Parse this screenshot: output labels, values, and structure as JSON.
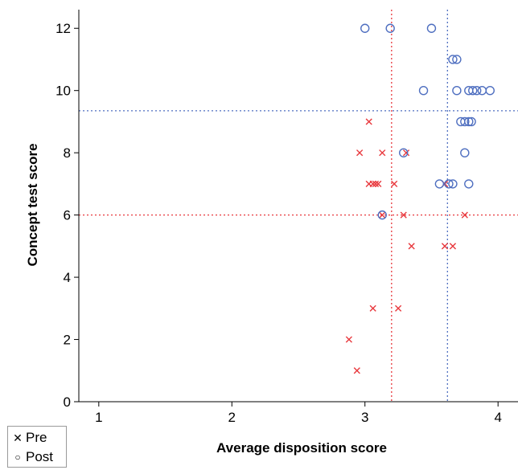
{
  "chart_data": {
    "type": "scatter",
    "title": "",
    "xlabel": "Average disposition score",
    "ylabel": "Concept test score",
    "xlim": [
      0.85,
      4.15
    ],
    "ylim": [
      0,
      12.6
    ],
    "xticks": [
      1,
      2,
      3,
      4
    ],
    "yticks": [
      0,
      2,
      4,
      6,
      8,
      10,
      12
    ],
    "grid": false,
    "legend_position": "bottom-left",
    "reference_lines": [
      {
        "orientation": "vertical",
        "value": 3.2,
        "color": "#e8383d"
      },
      {
        "orientation": "horizontal",
        "value": 6.0,
        "color": "#e8383d"
      },
      {
        "orientation": "vertical",
        "value": 3.62,
        "color": "#4f6fc0"
      },
      {
        "orientation": "horizontal",
        "value": 9.35,
        "color": "#4f6fc0"
      }
    ],
    "series": [
      {
        "name": "Pre",
        "marker": "x",
        "color": "#e8383d",
        "points": [
          [
            3.03,
            9
          ],
          [
            2.96,
            8
          ],
          [
            3.13,
            8
          ],
          [
            3.31,
            8
          ],
          [
            3.03,
            7
          ],
          [
            3.06,
            7
          ],
          [
            3.08,
            7
          ],
          [
            3.1,
            7
          ],
          [
            3.22,
            7
          ],
          [
            3.6,
            7
          ],
          [
            3.13,
            6
          ],
          [
            3.29,
            6
          ],
          [
            3.75,
            6
          ],
          [
            3.35,
            5
          ],
          [
            3.6,
            5
          ],
          [
            3.66,
            5
          ],
          [
            3.06,
            3
          ],
          [
            3.25,
            3
          ],
          [
            2.88,
            2
          ],
          [
            2.94,
            1
          ]
        ]
      },
      {
        "name": "Post",
        "marker": "o",
        "color": "#4f6fc0",
        "points": [
          [
            3.0,
            12
          ],
          [
            3.19,
            12
          ],
          [
            3.5,
            12
          ],
          [
            3.66,
            11
          ],
          [
            3.69,
            11
          ],
          [
            3.44,
            10
          ],
          [
            3.69,
            10
          ],
          [
            3.78,
            10
          ],
          [
            3.81,
            10
          ],
          [
            3.84,
            10
          ],
          [
            3.88,
            10
          ],
          [
            3.94,
            10
          ],
          [
            3.72,
            9
          ],
          [
            3.75,
            9
          ],
          [
            3.78,
            9
          ],
          [
            3.8,
            9
          ],
          [
            3.29,
            8
          ],
          [
            3.75,
            8
          ],
          [
            3.56,
            7
          ],
          [
            3.63,
            7
          ],
          [
            3.66,
            7
          ],
          [
            3.78,
            7
          ],
          [
            3.13,
            6
          ]
        ]
      }
    ]
  }
}
